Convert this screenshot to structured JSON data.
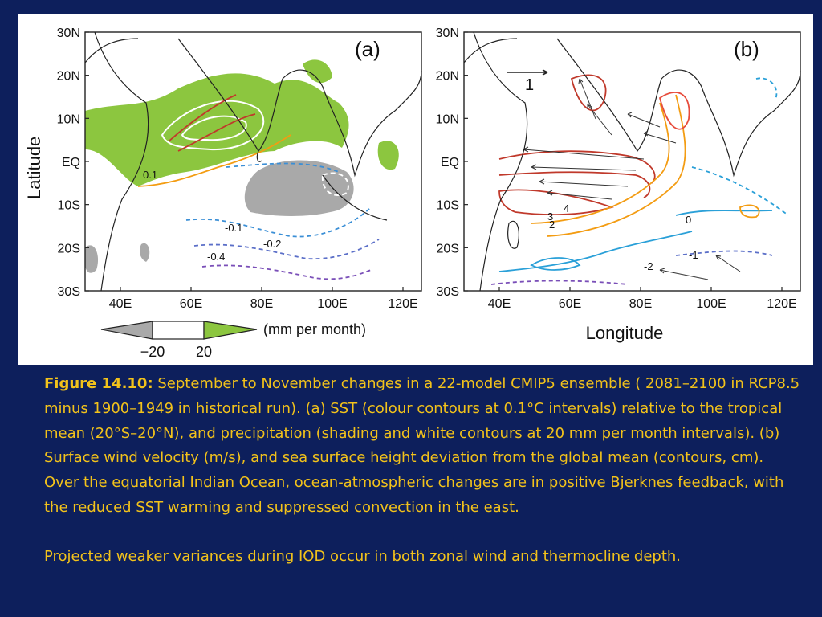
{
  "figure": {
    "panel_a": {
      "label": "(a)",
      "lat_ticks": [
        "30N",
        "20N",
        "10N",
        "EQ",
        "10S",
        "20S",
        "30S"
      ],
      "lon_ticks": [
        "40E",
        "60E",
        "80E",
        "100E",
        "120E"
      ],
      "ylabel": "Latitude",
      "contour_labels": [
        "0.1",
        "-0.1",
        "-0.2",
        "-0.4"
      ]
    },
    "panel_b": {
      "label": "(b)",
      "lat_ticks": [
        "30N",
        "20N",
        "10N",
        "EQ",
        "10S",
        "20S",
        "30S"
      ],
      "lon_ticks": [
        "40E",
        "60E",
        "80E",
        "100E",
        "120E"
      ],
      "xlabel": "Longitude",
      "reference_vector_label": "1",
      "contour_labels": [
        "4",
        "3",
        "2",
        "0",
        "-1",
        "-2"
      ]
    },
    "colorbar": {
      "ticks": [
        "−20",
        "20"
      ],
      "units": "(mm per month)",
      "colors": {
        "negative": "#a9a9a9",
        "neutral": "#ffffff",
        "positive": "#8cc63f"
      }
    }
  },
  "caption": {
    "lead": "Figure 14.10:",
    "body": " September to November changes in a 22-model CMIP5 ensemble ( 2081–2100 in RCP8.5 minus 1900–1949 in historical run). (a) SST (colour contours at 0.1°C intervals) relative to the tropical mean (20°S–20°N), and  precipitation (shading and white contours at 20 mm per month intervals). (b) Surface wind velocity (m/s), and sea surface height deviation from the global mean (contours, cm). Over the equatorial Indian Ocean, ocean-atmospheric changes are in positive Bjerknes feedback, with the reduced SST warming and suppressed convection in the east."
  },
  "note": "Projected weaker variances during IOD occur in both zonal wind and thermocline depth."
}
